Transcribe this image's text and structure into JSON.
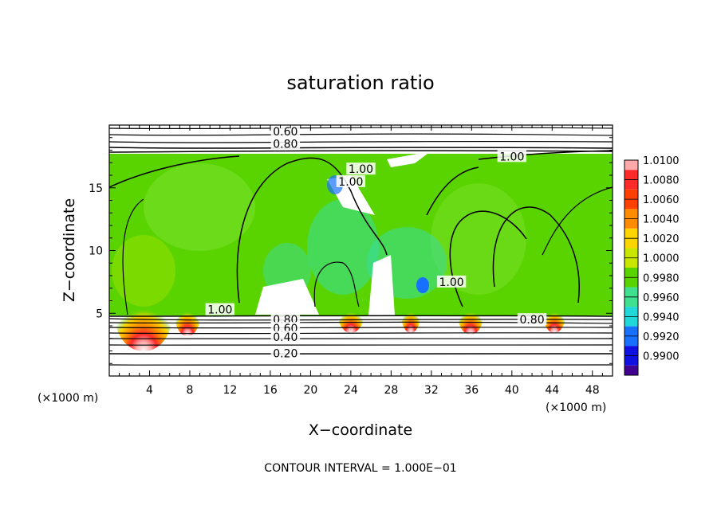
{
  "chart_data": {
    "type": "heatmap",
    "title": "saturation ratio",
    "xlabel": "X−coordinate",
    "ylabel": "Z−coordinate",
    "x_unit_label": "(×1000 m)",
    "z_unit_label": "(×1000 m)",
    "xlim": [
      0,
      50
    ],
    "ylim": [
      0,
      20
    ],
    "x_ticks": [
      4,
      8,
      12,
      16,
      20,
      24,
      28,
      32,
      36,
      40,
      44,
      48
    ],
    "x_tick_labels": [
      "4",
      "8",
      "12",
      "16",
      "20",
      "24",
      "28",
      "32",
      "36",
      "40",
      "44",
      "48"
    ],
    "y_ticks": [
      5,
      10,
      15
    ],
    "y_tick_labels": [
      "5",
      "10",
      "15"
    ],
    "footnote": "CONTOUR INTERVAL = 1.000E−01",
    "colorbar": {
      "values": [
        1.01,
        1.008,
        1.006,
        1.004,
        1.002,
        1.0,
        0.998,
        0.996,
        0.994,
        0.992,
        0.99
      ],
      "labels": [
        "1.0100",
        "1.0080",
        "1.0060",
        "1.0040",
        "1.0020",
        "1.0000",
        "0.9980",
        "0.9960",
        "0.9940",
        "0.9920",
        "0.9900"
      ],
      "colors": [
        "#ffaaaa",
        "#ff2a2a",
        "#ff4000",
        "#ff8c00",
        "#ffd500",
        "#c8e600",
        "#5ad400",
        "#40e090",
        "#20d8d8",
        "#1870ff",
        "#1010e0",
        "#400090"
      ]
    },
    "contour_labels": [
      {
        "text": "0.60",
        "x": 17.5,
        "z": 19.5
      },
      {
        "text": "0.80",
        "x": 17.5,
        "z": 18.5
      },
      {
        "text": "1.00",
        "x": 40,
        "z": 17.5
      },
      {
        "text": "1.00",
        "x": 25,
        "z": 16.5
      },
      {
        "text": "1.00",
        "x": 24,
        "z": 15.5
      },
      {
        "text": "1.00",
        "x": 34,
        "z": 7.5
      },
      {
        "text": "1.00",
        "x": 11,
        "z": 5.3
      },
      {
        "text": "0.80",
        "x": 17.5,
        "z": 4.5
      },
      {
        "text": "0.60",
        "x": 17.5,
        "z": 3.8
      },
      {
        "text": "0.40",
        "x": 17.5,
        "z": 3.1
      },
      {
        "text": "0.20",
        "x": 17.5,
        "z": 1.8
      },
      {
        "text": "0.80",
        "x": 42,
        "z": 4.5
      }
    ]
  }
}
